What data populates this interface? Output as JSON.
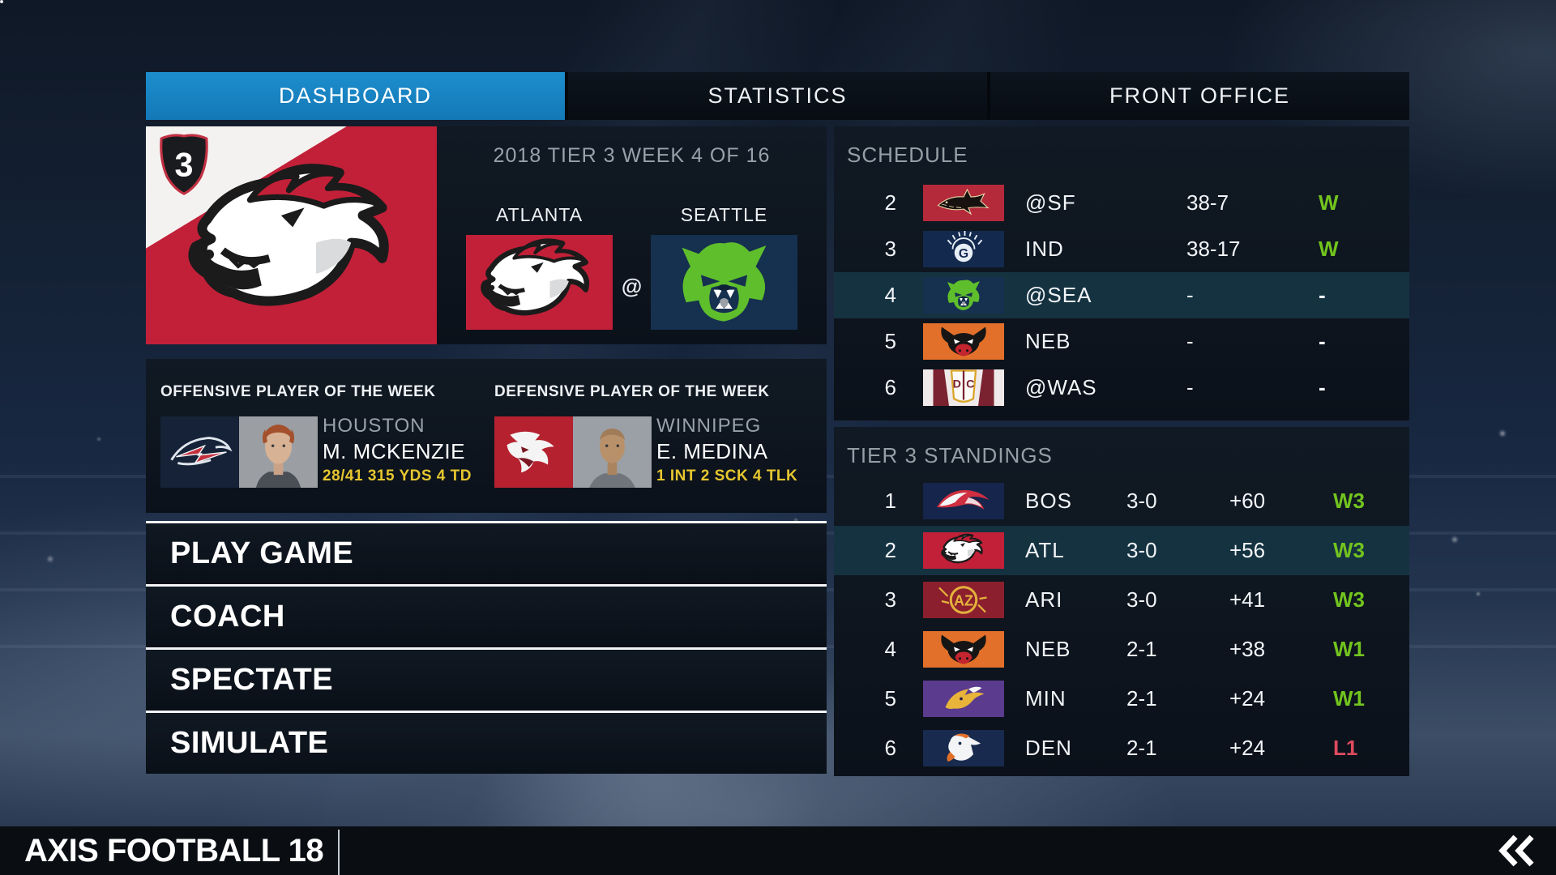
{
  "colors": {
    "accent": "#1583c5",
    "panel": "#0d141d",
    "highlight": "#153241",
    "green": "#72c41e",
    "red": "#e04b5e",
    "yellow": "#e6c62f",
    "gray_text": "#99a1ab",
    "footer_bg": "#0a0e13",
    "banner_red": "#c22038"
  },
  "tabs": [
    {
      "label": "DASHBOARD",
      "active": true
    },
    {
      "label": "STATISTICS",
      "active": false
    },
    {
      "label": "FRONT OFFICE",
      "active": false
    }
  ],
  "header": {
    "season_line": "2018 TIER 3 WEEK 4 OF 16",
    "tier_badge": "3",
    "team_code": "ATL"
  },
  "matchup": {
    "away_city": "ATLANTA",
    "home_city": "SEATTLE",
    "at_symbol": "@",
    "away_team_code": "ATL",
    "home_team_code": "SEA"
  },
  "players": {
    "offense": {
      "section_title": "OFFENSIVE PLAYER OF THE WEEK",
      "team_city": "HOUSTON",
      "team_code": "HOU",
      "name": "M. MCKENZIE",
      "statline": "28/41 315 YDS 4 TD",
      "avatar": "mckenzie"
    },
    "defense": {
      "section_title": "DEFENSIVE PLAYER OF THE WEEK",
      "team_city": "WINNIPEG",
      "team_code": "WPG",
      "name": "E. MEDINA",
      "statline": "1 INT 2 SCK 4 TLK",
      "avatar": "medina"
    }
  },
  "menu": [
    {
      "label": "PLAY GAME"
    },
    {
      "label": "COACH"
    },
    {
      "label": "SPECTATE"
    },
    {
      "label": "SIMULATE"
    }
  ],
  "schedule": {
    "title": "SCHEDULE",
    "rows": [
      {
        "week": "2",
        "team": "SF",
        "opponent": "@SF",
        "score": "38-7",
        "result": "W",
        "highlight": false
      },
      {
        "week": "3",
        "team": "IND",
        "opponent": "IND",
        "score": "38-17",
        "result": "W",
        "highlight": false
      },
      {
        "week": "4",
        "team": "SEA",
        "opponent": "@SEA",
        "score": "-",
        "result": "-",
        "highlight": true
      },
      {
        "week": "5",
        "team": "NEB",
        "opponent": "NEB",
        "score": "-",
        "result": "-",
        "highlight": false
      },
      {
        "week": "6",
        "team": "WAS",
        "opponent": "@WAS",
        "score": "-",
        "result": "-",
        "highlight": false
      }
    ]
  },
  "standings": {
    "title": "TIER 3 STANDINGS",
    "rows": [
      {
        "rank": "1",
        "team": "BOS",
        "record": "3-0",
        "diff": "+60",
        "streak": "W3",
        "highlight": false
      },
      {
        "rank": "2",
        "team": "ATL",
        "record": "3-0",
        "diff": "+56",
        "streak": "W3",
        "highlight": true
      },
      {
        "rank": "3",
        "team": "ARI",
        "record": "3-0",
        "diff": "+41",
        "streak": "W3",
        "highlight": false
      },
      {
        "rank": "4",
        "team": "NEB",
        "record": "2-1",
        "diff": "+38",
        "streak": "W1",
        "highlight": false
      },
      {
        "rank": "5",
        "team": "MIN",
        "record": "2-1",
        "diff": "+24",
        "streak": "W1",
        "highlight": false
      },
      {
        "rank": "6",
        "team": "DEN",
        "record": "2-1",
        "diff": "+24",
        "streak": "L1",
        "highlight": false
      }
    ]
  },
  "footer": {
    "title": "AXIS FOOTBALL 18"
  }
}
